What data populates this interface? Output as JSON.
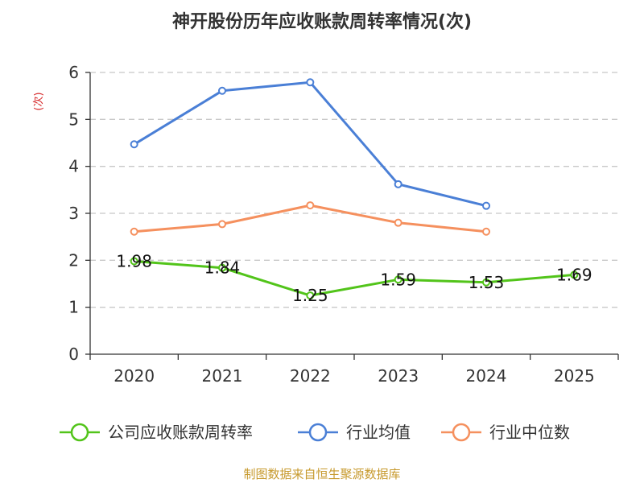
{
  "chart_data": {
    "type": "line",
    "title": "神开股份历年应收账款周转率情况(次)",
    "ylabel": "(次)",
    "xlabel": "",
    "ylim": [
      0,
      6
    ],
    "yticks": [
      0,
      1,
      2,
      3,
      4,
      5,
      6
    ],
    "grid": true,
    "legend_position": "bottom",
    "categories": [
      "2020",
      "2021",
      "2022",
      "2023",
      "2024",
      "2025"
    ],
    "series": [
      {
        "name": "公司应收账款周转率",
        "color": "#52c41a",
        "values": [
          1.98,
          1.84,
          1.25,
          1.59,
          1.53,
          1.69
        ],
        "labels": [
          "1.98",
          "1.84",
          "1.25",
          "1.59",
          "1.53",
          "1.69"
        ]
      },
      {
        "name": "行业均值",
        "color": "#4a7fd6",
        "values": [
          4.47,
          5.61,
          5.79,
          3.62,
          3.16,
          null
        ]
      },
      {
        "name": "行业中位数",
        "color": "#f5905e",
        "values": [
          2.61,
          2.77,
          3.17,
          2.8,
          2.61,
          null
        ]
      }
    ],
    "source": "制图数据来自恒生聚源数据库",
    "ylabel_color": "#d62728",
    "source_color": "#c79a2e"
  }
}
